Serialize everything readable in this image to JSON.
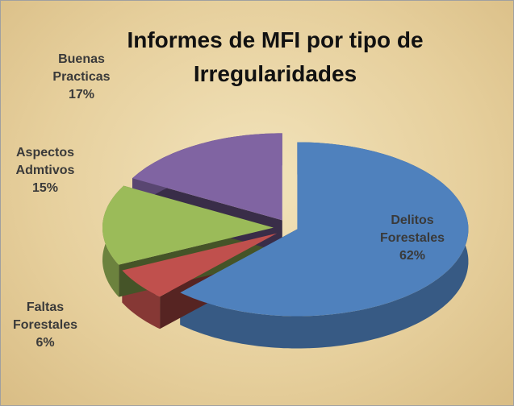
{
  "chart_data": {
    "type": "pie",
    "title": "Informes de MFI por tipo de Irregularidades",
    "categories": [
      "Delitos Forestales",
      "Faltas Forestales",
      "Aspectos Admtivos",
      "Buenas Practicas"
    ],
    "values": [
      62,
      6,
      15,
      17
    ],
    "value_labels": [
      "62%",
      "6%",
      "15%",
      "17%"
    ],
    "colors": [
      "#4f81bd",
      "#c0504d",
      "#9bbb59",
      "#8064a2"
    ]
  }
}
